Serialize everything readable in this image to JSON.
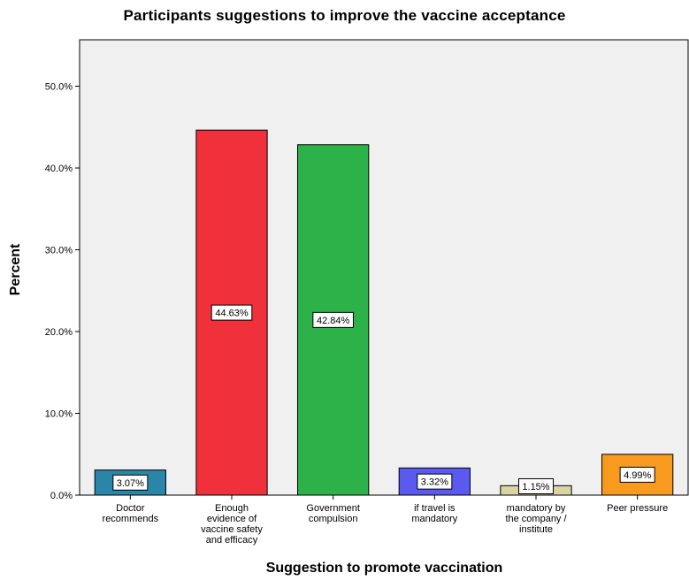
{
  "chart_data": {
    "type": "bar",
    "title": "Participants suggestions to improve the vaccine acceptance",
    "xlabel": "Suggestion to promote vaccination",
    "ylabel": "Percent",
    "ylim": [
      0,
      55
    ],
    "yticks": [
      "0.0%",
      "10.0%",
      "20.0%",
      "30.0%",
      "40.0%",
      "50.0%"
    ],
    "ytick_values": [
      0,
      10,
      20,
      30,
      40,
      50
    ],
    "grid": false,
    "categories": [
      [
        "Doctor",
        "recommends"
      ],
      [
        "Enough",
        "evidence of",
        "vaccine safety",
        "and efficacy"
      ],
      [
        "Government",
        "compulsion"
      ],
      [
        "if travel is",
        "mandatory"
      ],
      [
        "mandatory by",
        "the company /",
        "institute"
      ],
      [
        "Peer pressure"
      ]
    ],
    "values": [
      3.07,
      44.63,
      42.84,
      3.32,
      1.15,
      4.99
    ],
    "data_labels": [
      "3.07%",
      "44.63%",
      "42.84%",
      "3.32%",
      "1.15%",
      "4.99%"
    ],
    "colors": [
      "#2a86a8",
      "#f0303a",
      "#2db24a",
      "#5a5af0",
      "#d8d4a4",
      "#f79a1e"
    ]
  }
}
